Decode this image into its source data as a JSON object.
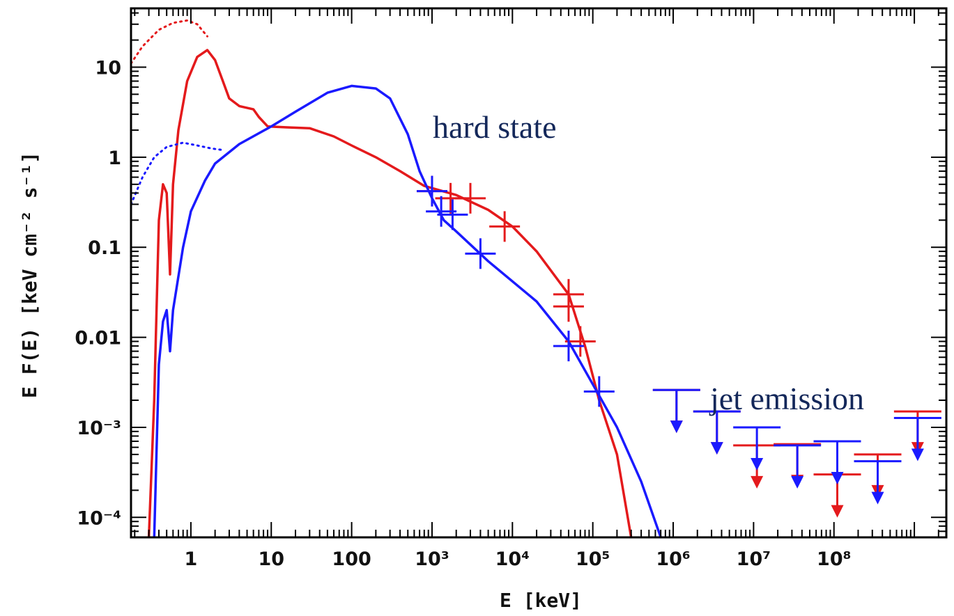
{
  "chart_data": {
    "type": "line",
    "title": "",
    "xlabel": "E [keV]",
    "ylabel": "E F(E) [keV cm⁻² s⁻¹]",
    "x_scale": "log",
    "y_scale": "log",
    "xlim": [
      0.18,
      2500000000
    ],
    "ylim": [
      6e-05,
      45
    ],
    "grid": false,
    "x_ticks": [
      {
        "value": 1,
        "label": "1"
      },
      {
        "value": 10,
        "label": "10"
      },
      {
        "value": 100,
        "label": "100"
      },
      {
        "value": 1000,
        "label": "10³"
      },
      {
        "value": 10000,
        "label": "10⁴"
      },
      {
        "value": 100000,
        "label": "10⁵"
      },
      {
        "value": 1000000,
        "label": "10⁶"
      },
      {
        "value": 10000000,
        "label": "10⁷"
      },
      {
        "value": 100000000,
        "label": "10⁸"
      }
    ],
    "y_ticks": [
      {
        "value": 10,
        "label": "10"
      },
      {
        "value": 1,
        "label": "1"
      },
      {
        "value": 0.1,
        "label": "0.1"
      },
      {
        "value": 0.01,
        "label": "0.01"
      },
      {
        "value": 0.001,
        "label": "10⁻³"
      },
      {
        "value": 0.0001,
        "label": "10⁻⁴"
      }
    ],
    "annotations": [
      {
        "text": "hard state",
        "x": 500,
        "y": 2.8
      },
      {
        "text": "jet emission",
        "x": 650000,
        "y": 0.0018
      }
    ],
    "series": [
      {
        "color": "#e41a1c",
        "dotted": [
          [
            0.18,
            11
          ],
          [
            0.25,
            17
          ],
          [
            0.4,
            26
          ],
          [
            0.6,
            31
          ],
          [
            0.9,
            33
          ],
          [
            1.2,
            30
          ],
          [
            1.6,
            22
          ]
        ],
        "model": [
          [
            0.3,
            6e-05
          ],
          [
            0.35,
            0.002
          ],
          [
            0.4,
            0.2
          ],
          [
            0.45,
            0.5
          ],
          [
            0.5,
            0.4
          ],
          [
            0.55,
            0.05
          ],
          [
            0.6,
            0.5
          ],
          [
            0.7,
            2
          ],
          [
            0.9,
            7
          ],
          [
            1.2,
            13
          ],
          [
            1.6,
            15.5
          ],
          [
            2,
            12
          ],
          [
            2.5,
            7
          ],
          [
            3,
            4.5
          ],
          [
            4,
            3.7
          ],
          [
            6,
            3.4
          ],
          [
            7,
            2.8
          ],
          [
            9,
            2.2
          ],
          [
            15,
            2.15
          ],
          [
            30,
            2.1
          ],
          [
            60,
            1.7
          ],
          [
            100,
            1.35
          ],
          [
            200,
            1.0
          ],
          [
            400,
            0.7
          ],
          [
            800,
            0.48
          ],
          [
            2000,
            0.38
          ],
          [
            5000,
            0.26
          ],
          [
            10000,
            0.17
          ],
          [
            20000,
            0.09
          ],
          [
            50000,
            0.03
          ],
          [
            80000,
            0.008
          ],
          [
            120000,
            0.002
          ],
          [
            200000,
            0.0005
          ],
          [
            300000,
            6e-05
          ]
        ],
        "error_points": [
          [
            1000,
            0.42
          ],
          [
            1700,
            0.35
          ],
          [
            3000,
            0.35
          ],
          [
            8000,
            0.17
          ],
          [
            50000,
            0.03
          ],
          [
            50000,
            0.022
          ],
          [
            70000,
            0.009
          ]
        ],
        "upper_limits": [
          [
            1100000,
            0.0026
          ],
          [
            3500000,
            0.0015
          ],
          [
            11000000,
            0.00063
          ],
          [
            35000000,
            0.00065
          ],
          [
            110000000,
            0.0003
          ],
          [
            350000000,
            0.0005
          ],
          [
            1100000000,
            0.0015
          ]
        ]
      },
      {
        "color": "#1a1aff",
        "dotted": [
          [
            0.18,
            0.3
          ],
          [
            0.25,
            0.6
          ],
          [
            0.35,
            1.0
          ],
          [
            0.5,
            1.3
          ],
          [
            0.8,
            1.45
          ],
          [
            1.2,
            1.35
          ],
          [
            1.8,
            1.25
          ],
          [
            2.5,
            1.2
          ]
        ],
        "model": [
          [
            0.35,
            6e-05
          ],
          [
            0.4,
            0.005
          ],
          [
            0.45,
            0.015
          ],
          [
            0.5,
            0.02
          ],
          [
            0.55,
            0.007
          ],
          [
            0.6,
            0.02
          ],
          [
            0.8,
            0.1
          ],
          [
            1,
            0.25
          ],
          [
            1.5,
            0.55
          ],
          [
            2,
            0.85
          ],
          [
            4,
            1.4
          ],
          [
            10,
            2.2
          ],
          [
            20,
            3.2
          ],
          [
            50,
            5.2
          ],
          [
            100,
            6.2
          ],
          [
            200,
            5.8
          ],
          [
            300,
            4.5
          ],
          [
            500,
            1.8
          ],
          [
            700,
            0.7
          ],
          [
            1000,
            0.35
          ],
          [
            1400,
            0.2
          ],
          [
            2000,
            0.15
          ],
          [
            5000,
            0.07
          ],
          [
            20000,
            0.025
          ],
          [
            50000,
            0.009
          ],
          [
            100000,
            0.003
          ],
          [
            200000,
            0.001
          ],
          [
            400000,
            0.00025
          ],
          [
            700000,
            6e-05
          ]
        ],
        "error_points": [
          [
            1000,
            0.42
          ],
          [
            1300,
            0.25
          ],
          [
            1800,
            0.23
          ],
          [
            4000,
            0.085
          ],
          [
            50000,
            0.008
          ],
          [
            120000,
            0.0025
          ]
        ],
        "upper_limits": [
          [
            1100000,
            0.0026
          ],
          [
            3500000,
            0.0015
          ],
          [
            11000000,
            0.001
          ],
          [
            35000000,
            0.00063
          ],
          [
            110000000,
            0.0007
          ],
          [
            350000000,
            0.00042
          ],
          [
            1100000000,
            0.00127
          ]
        ]
      }
    ]
  }
}
